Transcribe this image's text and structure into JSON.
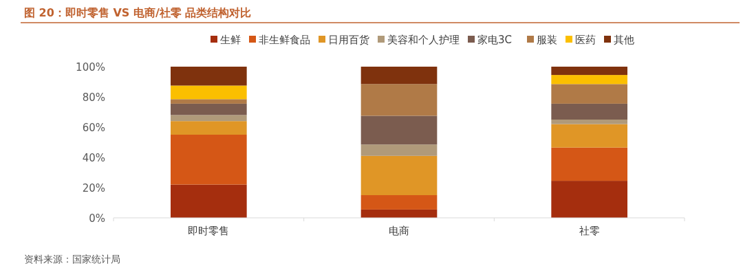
{
  "chart_data": {
    "type": "bar",
    "stacked": true,
    "title": "图 20：即时零售 VS 电商/社零  品类结构对比",
    "categories": [
      "即时零售",
      "电商",
      "社零"
    ],
    "series": [
      {
        "name": "生鲜",
        "color": "#a52e0e",
        "values": [
          22,
          5.5,
          24.5
        ]
      },
      {
        "name": "非生鲜食品",
        "color": "#d55716",
        "values": [
          33,
          9.5,
          22
        ]
      },
      {
        "name": "日用百货",
        "color": "#e09626",
        "values": [
          9,
          26,
          15.5
        ]
      },
      {
        "name": "美容和个人护理",
        "color": "#b09a7a",
        "values": [
          4,
          7.5,
          3
        ]
      },
      {
        "name": "家电3C",
        "color": "#7b5c4f",
        "values": [
          7.5,
          19,
          10.5
        ]
      },
      {
        "name": "服装",
        "color": "#b07a47",
        "values": [
          3,
          21,
          13
        ]
      },
      {
        "name": "医药",
        "color": "#fbbf00",
        "values": [
          9,
          0,
          6
        ]
      },
      {
        "name": "其他",
        "color": "#7f320d",
        "values": [
          12.5,
          11.5,
          5.5
        ]
      }
    ],
    "ylim": [
      0,
      100
    ],
    "yticks": [
      {
        "value": 0,
        "label": "0%"
      },
      {
        "value": 20,
        "label": "20%"
      },
      {
        "value": 40,
        "label": "40%"
      },
      {
        "value": 60,
        "label": "60%"
      },
      {
        "value": 80,
        "label": "80%"
      },
      {
        "value": 100,
        "label": "100%"
      }
    ],
    "legend": "top",
    "annotations": [
      "资料来源：国家统计局"
    ]
  }
}
